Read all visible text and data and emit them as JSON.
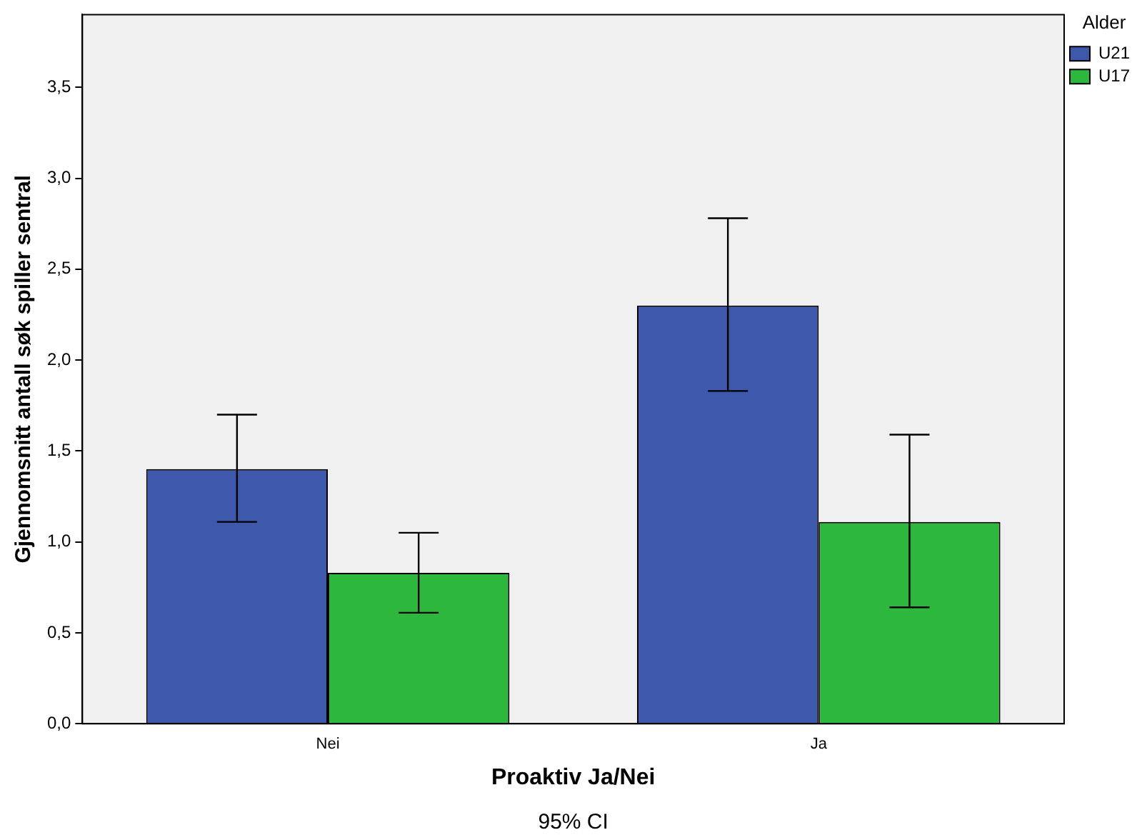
{
  "chart_data": {
    "type": "bar",
    "xlabel": "Proaktiv Ja/Nei",
    "ylabel": "Gjennomsnitt antall søk spiller sentral",
    "legend_title": "Alder",
    "categories": [
      "Nei",
      "Ja"
    ],
    "series": [
      {
        "name": "U21",
        "color": "#3e58ac",
        "values": [
          1.4,
          2.3
        ],
        "errors": [
          [
            1.11,
            1.7
          ],
          [
            1.83,
            2.78
          ]
        ]
      },
      {
        "name": "U17",
        "color": "#2db83d",
        "values": [
          0.83,
          1.11
        ],
        "errors": [
          [
            0.61,
            1.05
          ],
          [
            0.64,
            1.59
          ]
        ]
      }
    ],
    "ylim": [
      0,
      3.9
    ],
    "yticks": [
      {
        "value": 0,
        "label": "0,0"
      },
      {
        "value": 0.5,
        "label": "0,5"
      },
      {
        "value": 1,
        "label": "1,0"
      },
      {
        "value": 1.5,
        "label": "1,5"
      },
      {
        "value": 2,
        "label": "2,0"
      },
      {
        "value": 2.5,
        "label": "2,5"
      },
      {
        "value": 3,
        "label": "3,0"
      },
      {
        "value": 3.5,
        "label": "3,5"
      }
    ],
    "grid": false,
    "legend": "top right",
    "annotations": [
      "95% CI"
    ]
  }
}
